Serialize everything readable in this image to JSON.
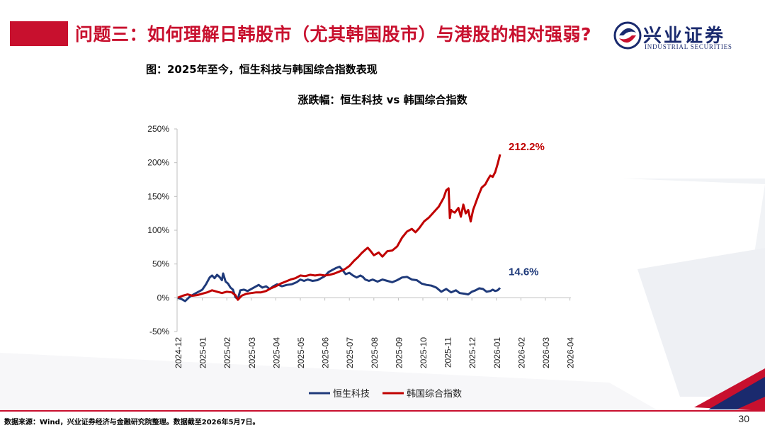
{
  "header": {
    "headline": "问题三：如何理解日韩股市（尤其韩国股市）与港股的相对强弱?",
    "logo_cn": "兴业证券",
    "logo_en": "INDUSTRIAL SECURITIES"
  },
  "figure": {
    "caption": "图：2025年至今，恒生科技与韩国综合指数表现"
  },
  "footer": {
    "source": "数据来源：Wind，兴业证券经济与金融研究院整理。数据截至2026年5月7日。",
    "page_number": "30"
  },
  "colors": {
    "brand_red": "#c8102e",
    "navy": "#1f3a7a",
    "series_red": "#c00000"
  },
  "chart_data": {
    "type": "line",
    "title": "涨跌幅：恒生科技 vs 韩国综合指数",
    "xlabel": "",
    "ylabel": "",
    "ylim": [
      -50,
      250
    ],
    "yticks": [
      "-50%",
      "0%",
      "50%",
      "100%",
      "150%",
      "200%",
      "250%"
    ],
    "ytick_values": [
      -50,
      0,
      50,
      100,
      150,
      200,
      250
    ],
    "xticks": [
      "2024-12",
      "2025-01",
      "2025-02",
      "2025-03",
      "2025-04",
      "2025-05",
      "2025-06",
      "2025-07",
      "2025-08",
      "2025-09",
      "2025-10",
      "2025-11",
      "2025-12",
      "2026-01",
      "2026-02",
      "2026-03",
      "2026-04"
    ],
    "grid": false,
    "legend": "bottom",
    "series": [
      {
        "name": "恒生科技",
        "color": "#1f3a7a",
        "end_label": "14.6%",
        "points": [
          [
            0,
            0
          ],
          [
            0.15,
            -2
          ],
          [
            0.3,
            -5
          ],
          [
            0.5,
            2
          ],
          [
            0.7,
            6
          ],
          [
            0.85,
            9
          ],
          [
            1.0,
            12
          ],
          [
            1.15,
            20
          ],
          [
            1.3,
            30
          ],
          [
            1.4,
            33
          ],
          [
            1.5,
            29
          ],
          [
            1.6,
            34
          ],
          [
            1.7,
            31
          ],
          [
            1.8,
            26
          ],
          [
            1.85,
            36
          ],
          [
            1.95,
            24
          ],
          [
            2.05,
            21
          ],
          [
            2.15,
            15
          ],
          [
            2.25,
            12
          ],
          [
            2.35,
            1
          ],
          [
            2.45,
            -2
          ],
          [
            2.55,
            11
          ],
          [
            2.7,
            12
          ],
          [
            2.85,
            10
          ],
          [
            3.0,
            13
          ],
          [
            3.15,
            16
          ],
          [
            3.3,
            19
          ],
          [
            3.45,
            15
          ],
          [
            3.6,
            17
          ],
          [
            3.75,
            13
          ],
          [
            3.9,
            17
          ],
          [
            4.05,
            20
          ],
          [
            4.25,
            17
          ],
          [
            4.45,
            19
          ],
          [
            4.65,
            20
          ],
          [
            4.85,
            23
          ],
          [
            5.0,
            27
          ],
          [
            5.15,
            25
          ],
          [
            5.3,
            27
          ],
          [
            5.5,
            25
          ],
          [
            5.7,
            26
          ],
          [
            5.85,
            29
          ],
          [
            6.0,
            32
          ],
          [
            6.15,
            38
          ],
          [
            6.3,
            41
          ],
          [
            6.45,
            44
          ],
          [
            6.6,
            46
          ],
          [
            6.7,
            42
          ],
          [
            6.85,
            35
          ],
          [
            7.0,
            37
          ],
          [
            7.15,
            33
          ],
          [
            7.3,
            30
          ],
          [
            7.45,
            33
          ],
          [
            7.55,
            31
          ],
          [
            7.65,
            27
          ],
          [
            7.8,
            25
          ],
          [
            7.95,
            27
          ],
          [
            8.15,
            24
          ],
          [
            8.35,
            27
          ],
          [
            8.55,
            25
          ],
          [
            8.75,
            23
          ],
          [
            8.95,
            26
          ],
          [
            9.15,
            30
          ],
          [
            9.35,
            31
          ],
          [
            9.55,
            27
          ],
          [
            9.75,
            26
          ],
          [
            9.95,
            21
          ],
          [
            10.15,
            19
          ],
          [
            10.35,
            18
          ],
          [
            10.55,
            15
          ],
          [
            10.75,
            9
          ],
          [
            10.95,
            13
          ],
          [
            11.15,
            8
          ],
          [
            11.35,
            11
          ],
          [
            11.5,
            7
          ],
          [
            11.7,
            6
          ],
          [
            11.85,
            5
          ],
          [
            12.0,
            9
          ],
          [
            12.15,
            11
          ],
          [
            12.3,
            14
          ],
          [
            12.45,
            13
          ],
          [
            12.6,
            9
          ],
          [
            12.75,
            10
          ],
          [
            12.85,
            12
          ],
          [
            12.95,
            10
          ],
          [
            13.05,
            11
          ],
          [
            13.15,
            14.6
          ]
        ]
      },
      {
        "name": "韩国综合指数",
        "color": "#c00000",
        "end_label": "212.2%",
        "points": [
          [
            0,
            0
          ],
          [
            0.2,
            3
          ],
          [
            0.4,
            5
          ],
          [
            0.6,
            3
          ],
          [
            0.8,
            4
          ],
          [
            1.0,
            6
          ],
          [
            1.2,
            8
          ],
          [
            1.4,
            11
          ],
          [
            1.6,
            9
          ],
          [
            1.8,
            7
          ],
          [
            2.0,
            9
          ],
          [
            2.2,
            8
          ],
          [
            2.35,
            4
          ],
          [
            2.45,
            -3
          ],
          [
            2.6,
            3
          ],
          [
            2.8,
            6
          ],
          [
            3.0,
            7
          ],
          [
            3.2,
            8
          ],
          [
            3.4,
            8
          ],
          [
            3.6,
            10
          ],
          [
            3.8,
            14
          ],
          [
            4.0,
            17
          ],
          [
            4.2,
            21
          ],
          [
            4.4,
            24
          ],
          [
            4.6,
            27
          ],
          [
            4.8,
            29
          ],
          [
            5.0,
            33
          ],
          [
            5.2,
            32
          ],
          [
            5.4,
            34
          ],
          [
            5.6,
            33
          ],
          [
            5.8,
            34
          ],
          [
            6.0,
            33
          ],
          [
            6.2,
            34
          ],
          [
            6.4,
            36
          ],
          [
            6.6,
            39
          ],
          [
            6.8,
            42
          ],
          [
            7.0,
            47
          ],
          [
            7.2,
            55
          ],
          [
            7.35,
            60
          ],
          [
            7.5,
            66
          ],
          [
            7.65,
            71
          ],
          [
            7.75,
            74
          ],
          [
            7.85,
            70
          ],
          [
            8.0,
            63
          ],
          [
            8.2,
            67
          ],
          [
            8.35,
            61
          ],
          [
            8.55,
            69
          ],
          [
            8.75,
            70
          ],
          [
            8.95,
            76
          ],
          [
            9.15,
            89
          ],
          [
            9.35,
            98
          ],
          [
            9.55,
            102
          ],
          [
            9.7,
            97
          ],
          [
            9.85,
            103
          ],
          [
            10.05,
            113
          ],
          [
            10.25,
            119
          ],
          [
            10.45,
            127
          ],
          [
            10.65,
            135
          ],
          [
            10.85,
            148
          ],
          [
            10.95,
            159
          ],
          [
            11.05,
            162
          ],
          [
            11.1,
            118
          ],
          [
            11.15,
            130
          ],
          [
            11.2,
            128
          ],
          [
            11.3,
            126
          ],
          [
            11.45,
            133
          ],
          [
            11.55,
            120
          ],
          [
            11.65,
            138
          ],
          [
            11.75,
            125
          ],
          [
            11.85,
            130
          ],
          [
            11.95,
            113
          ],
          [
            12.05,
            130
          ],
          [
            12.15,
            140
          ],
          [
            12.25,
            150
          ],
          [
            12.4,
            163
          ],
          [
            12.55,
            168
          ],
          [
            12.65,
            175
          ],
          [
            12.75,
            181
          ],
          [
            12.85,
            179
          ],
          [
            12.95,
            186
          ],
          [
            13.05,
            198
          ],
          [
            13.15,
            212.2
          ]
        ]
      }
    ]
  }
}
